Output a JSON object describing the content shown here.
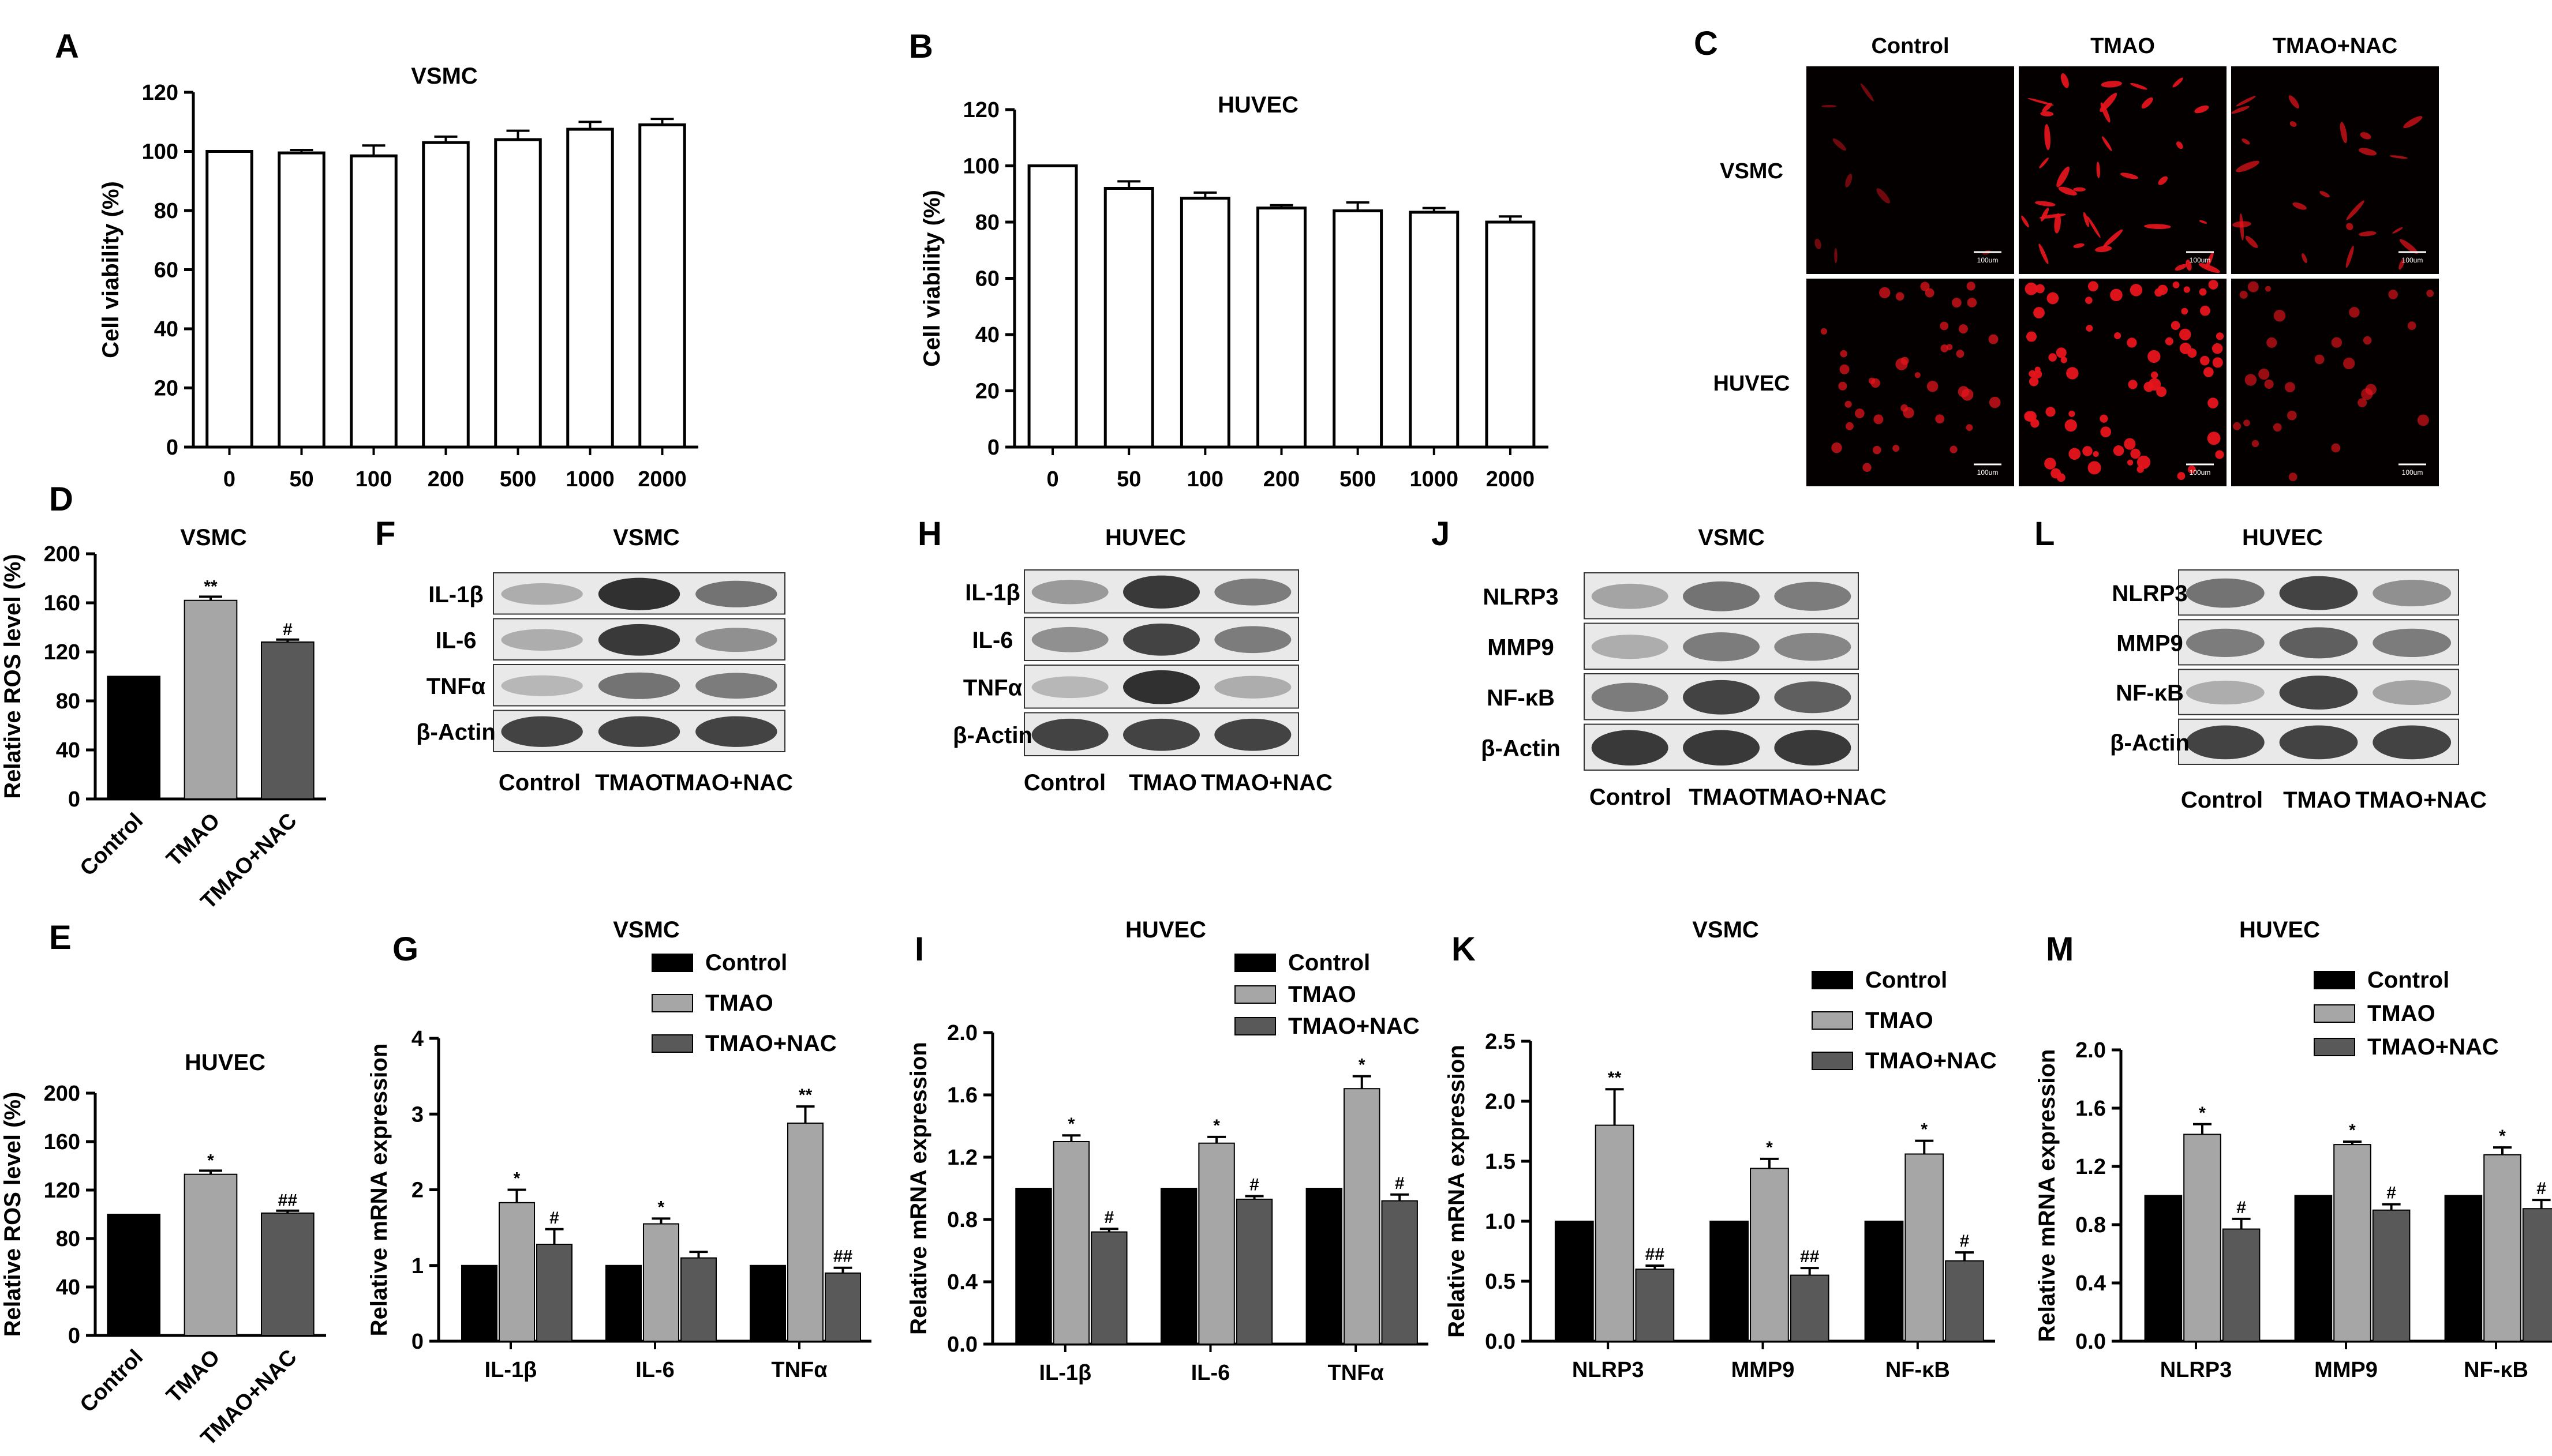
{
  "colors": {
    "control": "#000000",
    "tmao": "#a6a6a6",
    "tmao_nac": "#595959",
    "white_bar": "#ffffff",
    "fluor": "#e8141c"
  },
  "panel_c": {
    "letter": "C",
    "columns": [
      "Control",
      "TMAO",
      "TMAO+NAC"
    ],
    "rows": [
      "VSMC",
      "HUVEC"
    ],
    "scalebar": "100um",
    "intensity": [
      [
        0.2,
        0.95,
        0.6
      ],
      [
        0.55,
        1.0,
        0.4
      ]
    ]
  },
  "blots": [
    {
      "letter": "F",
      "title": "VSMC",
      "bands": [
        "IL-1β",
        "IL-6",
        "TNFα",
        "β-Actin"
      ],
      "lanes": [
        "Control",
        "TMAO",
        "TMAO+NAC"
      ],
      "density": [
        [
          0.3,
          0.95,
          0.6
        ],
        [
          0.3,
          0.9,
          0.45
        ],
        [
          0.25,
          0.6,
          0.55
        ],
        [
          0.85,
          0.85,
          0.85
        ]
      ]
    },
    {
      "letter": "H",
      "title": "HUVEC",
      "bands": [
        "IL-1β",
        "IL-6",
        "TNFα",
        "β-Actin"
      ],
      "lanes": [
        "Control",
        "TMAO",
        "TMAO+NAC"
      ],
      "density": [
        [
          0.4,
          0.9,
          0.55
        ],
        [
          0.45,
          0.85,
          0.55
        ],
        [
          0.25,
          0.95,
          0.3
        ],
        [
          0.85,
          0.85,
          0.85
        ]
      ]
    },
    {
      "letter": "J",
      "title": "VSMC",
      "bands": [
        "NLRP3",
        "MMP9",
        "NF-κB",
        "β-Actin"
      ],
      "lanes": [
        "Control",
        "TMAO",
        "TMAO+NAC"
      ],
      "density": [
        [
          0.35,
          0.6,
          0.55
        ],
        [
          0.3,
          0.55,
          0.5
        ],
        [
          0.55,
          0.85,
          0.7
        ],
        [
          0.9,
          0.9,
          0.9
        ]
      ]
    },
    {
      "letter": "L",
      "title": "HUVEC",
      "bands": [
        "NLRP3",
        "MMP9",
        "NF-κB",
        "β-Actin"
      ],
      "lanes": [
        "Control",
        "TMAO",
        "TMAO+NAC"
      ],
      "density": [
        [
          0.6,
          0.85,
          0.45
        ],
        [
          0.55,
          0.7,
          0.55
        ],
        [
          0.3,
          0.85,
          0.35
        ],
        [
          0.85,
          0.85,
          0.85
        ]
      ]
    }
  ],
  "chart_data": [
    {
      "letter": "A",
      "type": "bar",
      "title": "VSMC",
      "xlabel": "",
      "ylabel": "Cell viability (%)",
      "categories": [
        "0",
        "50",
        "100",
        "200",
        "500",
        "1000",
        "2000"
      ],
      "values": [
        100,
        99.5,
        98.5,
        103,
        104,
        107.5,
        109
      ],
      "errors": [
        0,
        1,
        3.5,
        2,
        3,
        2.5,
        2
      ],
      "ylim": [
        0,
        120
      ],
      "yticks": [
        0,
        20,
        40,
        60,
        80,
        100,
        120
      ],
      "legend": "none"
    },
    {
      "letter": "B",
      "type": "bar",
      "title": "HUVEC",
      "xlabel": "",
      "ylabel": "Cell viability (%)",
      "categories": [
        "0",
        "50",
        "100",
        "200",
        "500",
        "1000",
        "2000"
      ],
      "values": [
        100,
        92,
        88.5,
        85,
        84,
        83.5,
        80
      ],
      "errors": [
        0,
        2.5,
        2,
        1,
        3,
        1.5,
        2
      ],
      "ylim": [
        0,
        120
      ],
      "yticks": [
        0,
        20,
        40,
        60,
        80,
        100,
        120
      ],
      "legend": "none"
    },
    {
      "letter": "D",
      "type": "bar",
      "title": "VSMC",
      "xlabel": "",
      "ylabel": "Relative ROS level (%)",
      "categories": [
        "Control",
        "TMAO",
        "TMAO+NAC"
      ],
      "values": [
        100,
        162,
        128
      ],
      "errors": [
        0,
        3,
        2
      ],
      "significance": [
        "",
        "**",
        "#"
      ],
      "ylim": [
        0,
        200
      ],
      "yticks": [
        0,
        40,
        80,
        120,
        160,
        200
      ],
      "legend": "none"
    },
    {
      "letter": "E",
      "type": "bar",
      "title": "HUVEC",
      "xlabel": "",
      "ylabel": "Relative ROS level (%)",
      "categories": [
        "Control",
        "TMAO",
        "TMAO+NAC"
      ],
      "values": [
        100,
        133,
        101
      ],
      "errors": [
        0,
        3,
        2
      ],
      "significance": [
        "",
        "*",
        "##"
      ],
      "ylim": [
        0,
        200
      ],
      "yticks": [
        0,
        40,
        80,
        120,
        160,
        200
      ],
      "legend": "none"
    },
    {
      "letter": "G",
      "type": "bar",
      "title": "VSMC",
      "xlabel": "",
      "ylabel": "Relative  mRNA expression",
      "categories": [
        "IL-1β",
        "IL-6",
        "TNFα"
      ],
      "series": [
        {
          "name": "Control",
          "values": [
            1,
            1,
            1
          ],
          "errors": [
            0,
            0,
            0
          ],
          "significance": [
            "",
            "",
            ""
          ]
        },
        {
          "name": "TMAO",
          "values": [
            1.83,
            1.55,
            2.88
          ],
          "errors": [
            0.17,
            0.07,
            0.22
          ],
          "significance": [
            "*",
            "*",
            "**"
          ]
        },
        {
          "name": "TMAO+NAC",
          "values": [
            1.28,
            1.1,
            0.9
          ],
          "errors": [
            0.2,
            0.08,
            0.07
          ],
          "significance": [
            "#",
            "",
            "##"
          ]
        }
      ],
      "ylim": [
        0,
        4
      ],
      "yticks": [
        0,
        1,
        2,
        3,
        4
      ],
      "legend": "top-right"
    },
    {
      "letter": "I",
      "type": "bar",
      "title": "HUVEC",
      "xlabel": "",
      "ylabel": "Relative mRNA expression",
      "categories": [
        "IL-1β",
        "IL-6",
        "TNFα"
      ],
      "series": [
        {
          "name": "Control",
          "values": [
            1,
            1,
            1
          ],
          "errors": [
            0,
            0,
            0
          ],
          "significance": [
            "",
            "",
            ""
          ]
        },
        {
          "name": "TMAO",
          "values": [
            1.3,
            1.29,
            1.64
          ],
          "errors": [
            0.04,
            0.04,
            0.08
          ],
          "significance": [
            "*",
            "*",
            "*"
          ]
        },
        {
          "name": "TMAO+NAC",
          "values": [
            0.72,
            0.93,
            0.92
          ],
          "errors": [
            0.02,
            0.02,
            0.04
          ],
          "significance": [
            "#",
            "#",
            "#"
          ]
        }
      ],
      "ylim": [
        0,
        2
      ],
      "yticks": [
        0,
        0.4,
        0.8,
        1.2,
        1.6,
        2.0
      ],
      "legend": "top-right"
    },
    {
      "letter": "K",
      "type": "bar",
      "title": "VSMC",
      "xlabel": "",
      "ylabel": "Relative  mRNA expression",
      "categories": [
        "NLRP3",
        "MMP9",
        "NF-κB"
      ],
      "series": [
        {
          "name": "Control",
          "values": [
            1,
            1,
            1
          ],
          "errors": [
            0,
            0,
            0
          ],
          "significance": [
            "",
            "",
            ""
          ]
        },
        {
          "name": "TMAO",
          "values": [
            1.8,
            1.44,
            1.56
          ],
          "errors": [
            0.3,
            0.08,
            0.11
          ],
          "significance": [
            "**",
            "*",
            "*"
          ]
        },
        {
          "name": "TMAO+NAC",
          "values": [
            0.6,
            0.55,
            0.67
          ],
          "errors": [
            0.03,
            0.06,
            0.07
          ],
          "significance": [
            "##",
            "##",
            "#"
          ]
        }
      ],
      "ylim": [
        0,
        2.5
      ],
      "yticks": [
        0,
        0.5,
        1.0,
        1.5,
        2.0,
        2.5
      ],
      "legend": "top-right"
    },
    {
      "letter": "M",
      "type": "bar",
      "title": "HUVEC",
      "xlabel": "",
      "ylabel": "Relative mRNA expression",
      "categories": [
        "NLRP3",
        "MMP9",
        "NF-κB"
      ],
      "series": [
        {
          "name": "Control",
          "values": [
            1,
            1,
            1
          ],
          "errors": [
            0,
            0,
            0
          ],
          "significance": [
            "",
            "",
            ""
          ]
        },
        {
          "name": "TMAO",
          "values": [
            1.42,
            1.35,
            1.28
          ],
          "errors": [
            0.07,
            0.02,
            0.05
          ],
          "significance": [
            "*",
            "*",
            "*"
          ]
        },
        {
          "name": "TMAO+NAC",
          "values": [
            0.77,
            0.9,
            0.91
          ],
          "errors": [
            0.07,
            0.04,
            0.06
          ],
          "significance": [
            "#",
            "#",
            "#"
          ]
        }
      ],
      "ylim": [
        0,
        2
      ],
      "yticks": [
        0,
        0.4,
        0.8,
        1.2,
        1.6,
        2.0
      ],
      "legend": "top-right"
    }
  ]
}
